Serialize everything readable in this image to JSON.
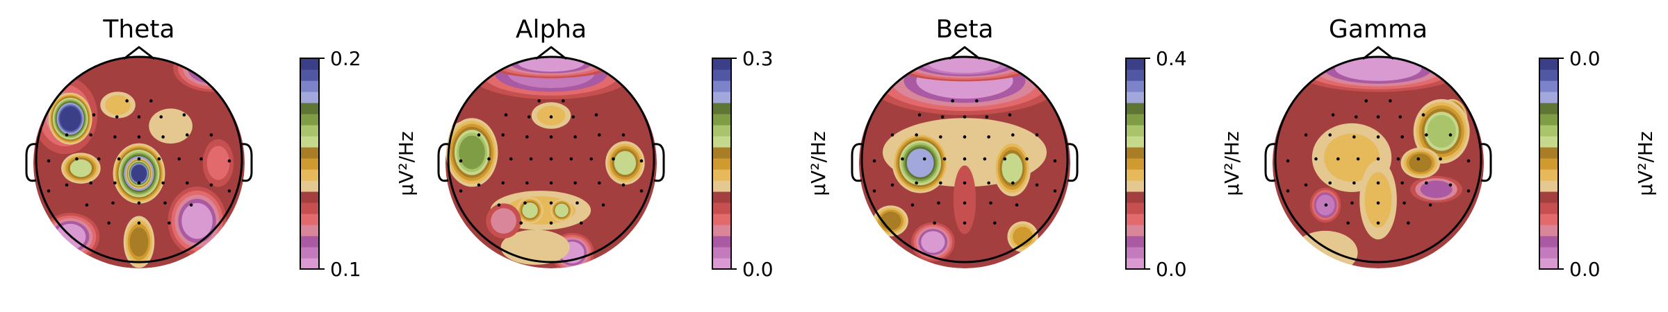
{
  "chart_data": [
    {
      "type": "topomap",
      "title": "Theta",
      "colorbar": {
        "min_label": "0.1",
        "max_label": "0.2",
        "label": "µV²/Hz"
      },
      "blobs": [
        {
          "lvl": 0.18,
          "x": -0.7,
          "y": -0.45,
          "rx": 0.28,
          "ry": 0.34
        },
        {
          "lvl": 0.97,
          "x": -0.65,
          "y": -0.42,
          "rx": 0.18,
          "ry": 0.22
        },
        {
          "lvl": 0.6,
          "x": -0.55,
          "y": 0.05,
          "rx": 0.16,
          "ry": 0.12
        },
        {
          "lvl": 0.9,
          "x": 0.0,
          "y": 0.1,
          "rx": 0.22,
          "ry": 0.26
        },
        {
          "lvl": 1.0,
          "x": 0.0,
          "y": 0.1,
          "rx": 0.1,
          "ry": 0.12
        },
        {
          "lvl": 0.55,
          "x": 0.0,
          "y": 0.75,
          "rx": 0.12,
          "ry": 0.22
        },
        {
          "lvl": 0.05,
          "x": -0.65,
          "y": 0.7,
          "rx": 0.25,
          "ry": 0.2
        },
        {
          "lvl": 0.05,
          "x": 0.55,
          "y": 0.55,
          "rx": 0.25,
          "ry": 0.3
        },
        {
          "lvl": 0.05,
          "x": 0.7,
          "y": -0.9,
          "rx": 0.35,
          "ry": 0.2
        },
        {
          "lvl": 0.4,
          "x": 0.3,
          "y": -0.35,
          "rx": 0.18,
          "ry": 0.14
        },
        {
          "lvl": 0.45,
          "x": -0.2,
          "y": -0.55,
          "rx": 0.14,
          "ry": 0.1
        },
        {
          "lvl": 0.25,
          "x": 0.75,
          "y": 0.0,
          "rx": 0.12,
          "ry": 0.2
        }
      ]
    },
    {
      "type": "topomap",
      "title": "Alpha",
      "colorbar": {
        "min_label": "0.0",
        "max_label": "0.3",
        "label": "µV²/Hz"
      },
      "blobs": [
        {
          "lvl": 0.1,
          "x": 0.0,
          "y": -0.85,
          "rx": 0.75,
          "ry": 0.22
        },
        {
          "lvl": 0.05,
          "x": 0.0,
          "y": -0.95,
          "rx": 0.6,
          "ry": 0.12
        },
        {
          "lvl": 0.95,
          "x": -0.82,
          "y": -0.15,
          "rx": 0.16,
          "ry": 0.22
        },
        {
          "lvl": 0.7,
          "x": -0.75,
          "y": -0.1,
          "rx": 0.22,
          "ry": 0.3
        },
        {
          "lvl": 0.6,
          "x": 0.7,
          "y": 0.0,
          "rx": 0.16,
          "ry": 0.18
        },
        {
          "lvl": 0.45,
          "x": -0.1,
          "y": 0.45,
          "rx": 0.45,
          "ry": 0.16
        },
        {
          "lvl": 0.6,
          "x": -0.2,
          "y": 0.45,
          "rx": 0.1,
          "ry": 0.1
        },
        {
          "lvl": 0.6,
          "x": 0.1,
          "y": 0.45,
          "rx": 0.08,
          "ry": 0.08
        },
        {
          "lvl": 0.45,
          "x": 0.0,
          "y": -0.45,
          "rx": 0.16,
          "ry": 0.1
        },
        {
          "lvl": 0.05,
          "x": 0.2,
          "y": 0.85,
          "rx": 0.18,
          "ry": 0.16
        },
        {
          "lvl": 0.4,
          "x": -0.15,
          "y": 0.8,
          "rx": 0.3,
          "ry": 0.14
        },
        {
          "lvl": 0.2,
          "x": -0.45,
          "y": 0.55,
          "rx": 0.14,
          "ry": 0.14
        }
      ]
    },
    {
      "type": "topomap",
      "title": "Beta",
      "colorbar": {
        "min_label": "0.0",
        "max_label": "0.4",
        "label": "µV²/Hz"
      },
      "blobs": [
        {
          "lvl": 0.05,
          "x": 0.0,
          "y": -0.78,
          "rx": 0.9,
          "ry": 0.3
        },
        {
          "lvl": 0.0,
          "x": 0.0,
          "y": -0.95,
          "rx": 0.7,
          "ry": 0.15
        },
        {
          "lvl": 0.4,
          "x": 0.0,
          "y": -0.1,
          "rx": 0.75,
          "ry": 0.3
        },
        {
          "lvl": 1.0,
          "x": -0.42,
          "y": 0.0,
          "rx": 0.14,
          "ry": 0.14
        },
        {
          "lvl": 0.8,
          "x": -0.42,
          "y": 0.0,
          "rx": 0.24,
          "ry": 0.26
        },
        {
          "lvl": 0.6,
          "x": 0.45,
          "y": 0.05,
          "rx": 0.15,
          "ry": 0.24
        },
        {
          "lvl": 0.55,
          "x": -0.7,
          "y": 0.55,
          "rx": 0.14,
          "ry": 0.12
        },
        {
          "lvl": 0.3,
          "x": 0.0,
          "y": 0.35,
          "rx": 0.08,
          "ry": 0.3
        },
        {
          "lvl": 0.5,
          "x": 0.55,
          "y": 0.7,
          "rx": 0.12,
          "ry": 0.12
        },
        {
          "lvl": 0.05,
          "x": -0.3,
          "y": 0.75,
          "rx": 0.18,
          "ry": 0.16
        }
      ]
    },
    {
      "type": "topomap",
      "title": "Gamma",
      "colorbar": {
        "min_label": "0.0",
        "max_label": "0.0",
        "label": "µV²/Hz"
      },
      "blobs": [
        {
          "lvl": 0.05,
          "x": 0.0,
          "y": -0.9,
          "rx": 0.8,
          "ry": 0.2
        },
        {
          "lvl": 0.95,
          "x": 0.7,
          "y": -0.4,
          "rx": 0.12,
          "ry": 0.18
        },
        {
          "lvl": 0.65,
          "x": 0.6,
          "y": -0.3,
          "rx": 0.24,
          "ry": 0.28
        },
        {
          "lvl": 0.45,
          "x": -0.25,
          "y": -0.05,
          "rx": 0.35,
          "ry": 0.3
        },
        {
          "lvl": 0.45,
          "x": 0.0,
          "y": 0.35,
          "rx": 0.15,
          "ry": 0.35
        },
        {
          "lvl": 0.1,
          "x": -0.5,
          "y": 0.4,
          "rx": 0.12,
          "ry": 0.14
        },
        {
          "lvl": 0.15,
          "x": 0.55,
          "y": 0.25,
          "rx": 0.22,
          "ry": 0.1
        },
        {
          "lvl": 0.55,
          "x": 0.4,
          "y": 0.0,
          "rx": 0.16,
          "ry": 0.12
        },
        {
          "lvl": 0.4,
          "x": -0.5,
          "y": 0.85,
          "rx": 0.28,
          "ry": 0.18
        },
        {
          "lvl": 0.35,
          "x": 0.35,
          "y": 0.9,
          "rx": 0.18,
          "ry": 0.12
        }
      ]
    }
  ]
}
